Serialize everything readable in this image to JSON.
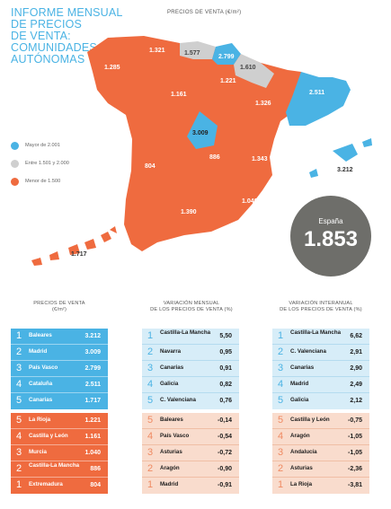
{
  "header": {
    "title_lines": [
      "INFORME MENSUAL",
      "DE PRECIOS",
      "DE VENTA:",
      "COMUNIDADES",
      "AUTÓNOMAS"
    ],
    "map_title": "PRECIOS DE VENTA (€/m²)"
  },
  "legend": [
    {
      "label": "Mayor de 2.001",
      "color": "#4ab3e4"
    },
    {
      "label": "Entre 1.501 y 2.000",
      "color": "#cfcfcf"
    },
    {
      "label": "Menor de 1.500",
      "color": "#ef6b3f"
    }
  ],
  "map": {
    "colors": {
      "high": "#4ab3e4",
      "mid": "#cfcfcf",
      "low": "#ef6b3f"
    },
    "labels": {
      "galicia": "1.285",
      "asturias": "1.321",
      "cantabria": "1.577",
      "pais_vasco": "2.799",
      "navarra": "1.610",
      "la_rioja": "1.221",
      "castilla_leon": "1.161",
      "aragon": "1.326",
      "cataluna": "2.511",
      "madrid": "3.009",
      "extremadura": "804",
      "castilla_la_mancha": "886",
      "valencia": "1.343",
      "murcia": "1.040",
      "andalucia": "1.390",
      "baleares": "3.212",
      "canarias": "1.717"
    }
  },
  "spain_badge": {
    "label": "España",
    "value": "1.853"
  },
  "columns": {
    "precios": {
      "title_lines": [
        "PRECIOS DE VENTA",
        "(€/m²)"
      ],
      "top": [
        {
          "rank": "1",
          "name": "Baleares",
          "value": "3.212"
        },
        {
          "rank": "2",
          "name": "Madrid",
          "value": "3.009"
        },
        {
          "rank": "3",
          "name": "País Vasco",
          "value": "2.799"
        },
        {
          "rank": "4",
          "name": "Cataluña",
          "value": "2.511"
        },
        {
          "rank": "5",
          "name": "Canarias",
          "value": "1.717"
        }
      ],
      "bottom": [
        {
          "rank": "5",
          "name": "La Rioja",
          "value": "1.221"
        },
        {
          "rank": "4",
          "name": "Castilla y León",
          "value": "1.161"
        },
        {
          "rank": "3",
          "name": "Murcia",
          "value": "1.040"
        },
        {
          "rank": "2",
          "name": "Castilla-La Mancha",
          "value": "886"
        },
        {
          "rank": "1",
          "name": "Extremadura",
          "value": "804"
        }
      ]
    },
    "mensual": {
      "title_lines": [
        "VARIACIÓN MENSUAL",
        "DE LOS PRECIOS DE VENTA (%)"
      ],
      "top": [
        {
          "rank": "1",
          "name": "Castilla-La Mancha",
          "value": "5,50"
        },
        {
          "rank": "2",
          "name": "Navarra",
          "value": "0,95"
        },
        {
          "rank": "3",
          "name": "Canarias",
          "value": "0,91"
        },
        {
          "rank": "4",
          "name": "Galicia",
          "value": "0,82"
        },
        {
          "rank": "5",
          "name": "C. Valenciana",
          "value": "0,76"
        }
      ],
      "bottom": [
        {
          "rank": "5",
          "name": "Baleares",
          "value": "-0,14"
        },
        {
          "rank": "4",
          "name": "País Vasco",
          "value": "-0,54"
        },
        {
          "rank": "3",
          "name": "Asturias",
          "value": "-0,72"
        },
        {
          "rank": "2",
          "name": "Aragón",
          "value": "-0,90"
        },
        {
          "rank": "1",
          "name": "Madrid",
          "value": "-0,91"
        }
      ]
    },
    "interanual": {
      "title_lines": [
        "VARIACIÓN INTERANUAL",
        "DE LOS PRECIOS DE VENTA (%)"
      ],
      "top": [
        {
          "rank": "1",
          "name": "Castilla-La Mancha",
          "value": "6,62"
        },
        {
          "rank": "2",
          "name": "C. Valenciana",
          "value": "2,91"
        },
        {
          "rank": "3",
          "name": "Canarias",
          "value": "2,90"
        },
        {
          "rank": "4",
          "name": "Madrid",
          "value": "2,49"
        },
        {
          "rank": "5",
          "name": "Galicia",
          "value": "2,12"
        }
      ],
      "bottom": [
        {
          "rank": "5",
          "name": "Castilla y León",
          "value": "-0,75"
        },
        {
          "rank": "4",
          "name": "Aragón",
          "value": "-1,05"
        },
        {
          "rank": "3",
          "name": "Andalucía",
          "value": "-1,05"
        },
        {
          "rank": "2",
          "name": "Asturias",
          "value": "-2,36"
        },
        {
          "rank": "1",
          "name": "La Rioja",
          "value": "-3,81"
        }
      ]
    }
  }
}
